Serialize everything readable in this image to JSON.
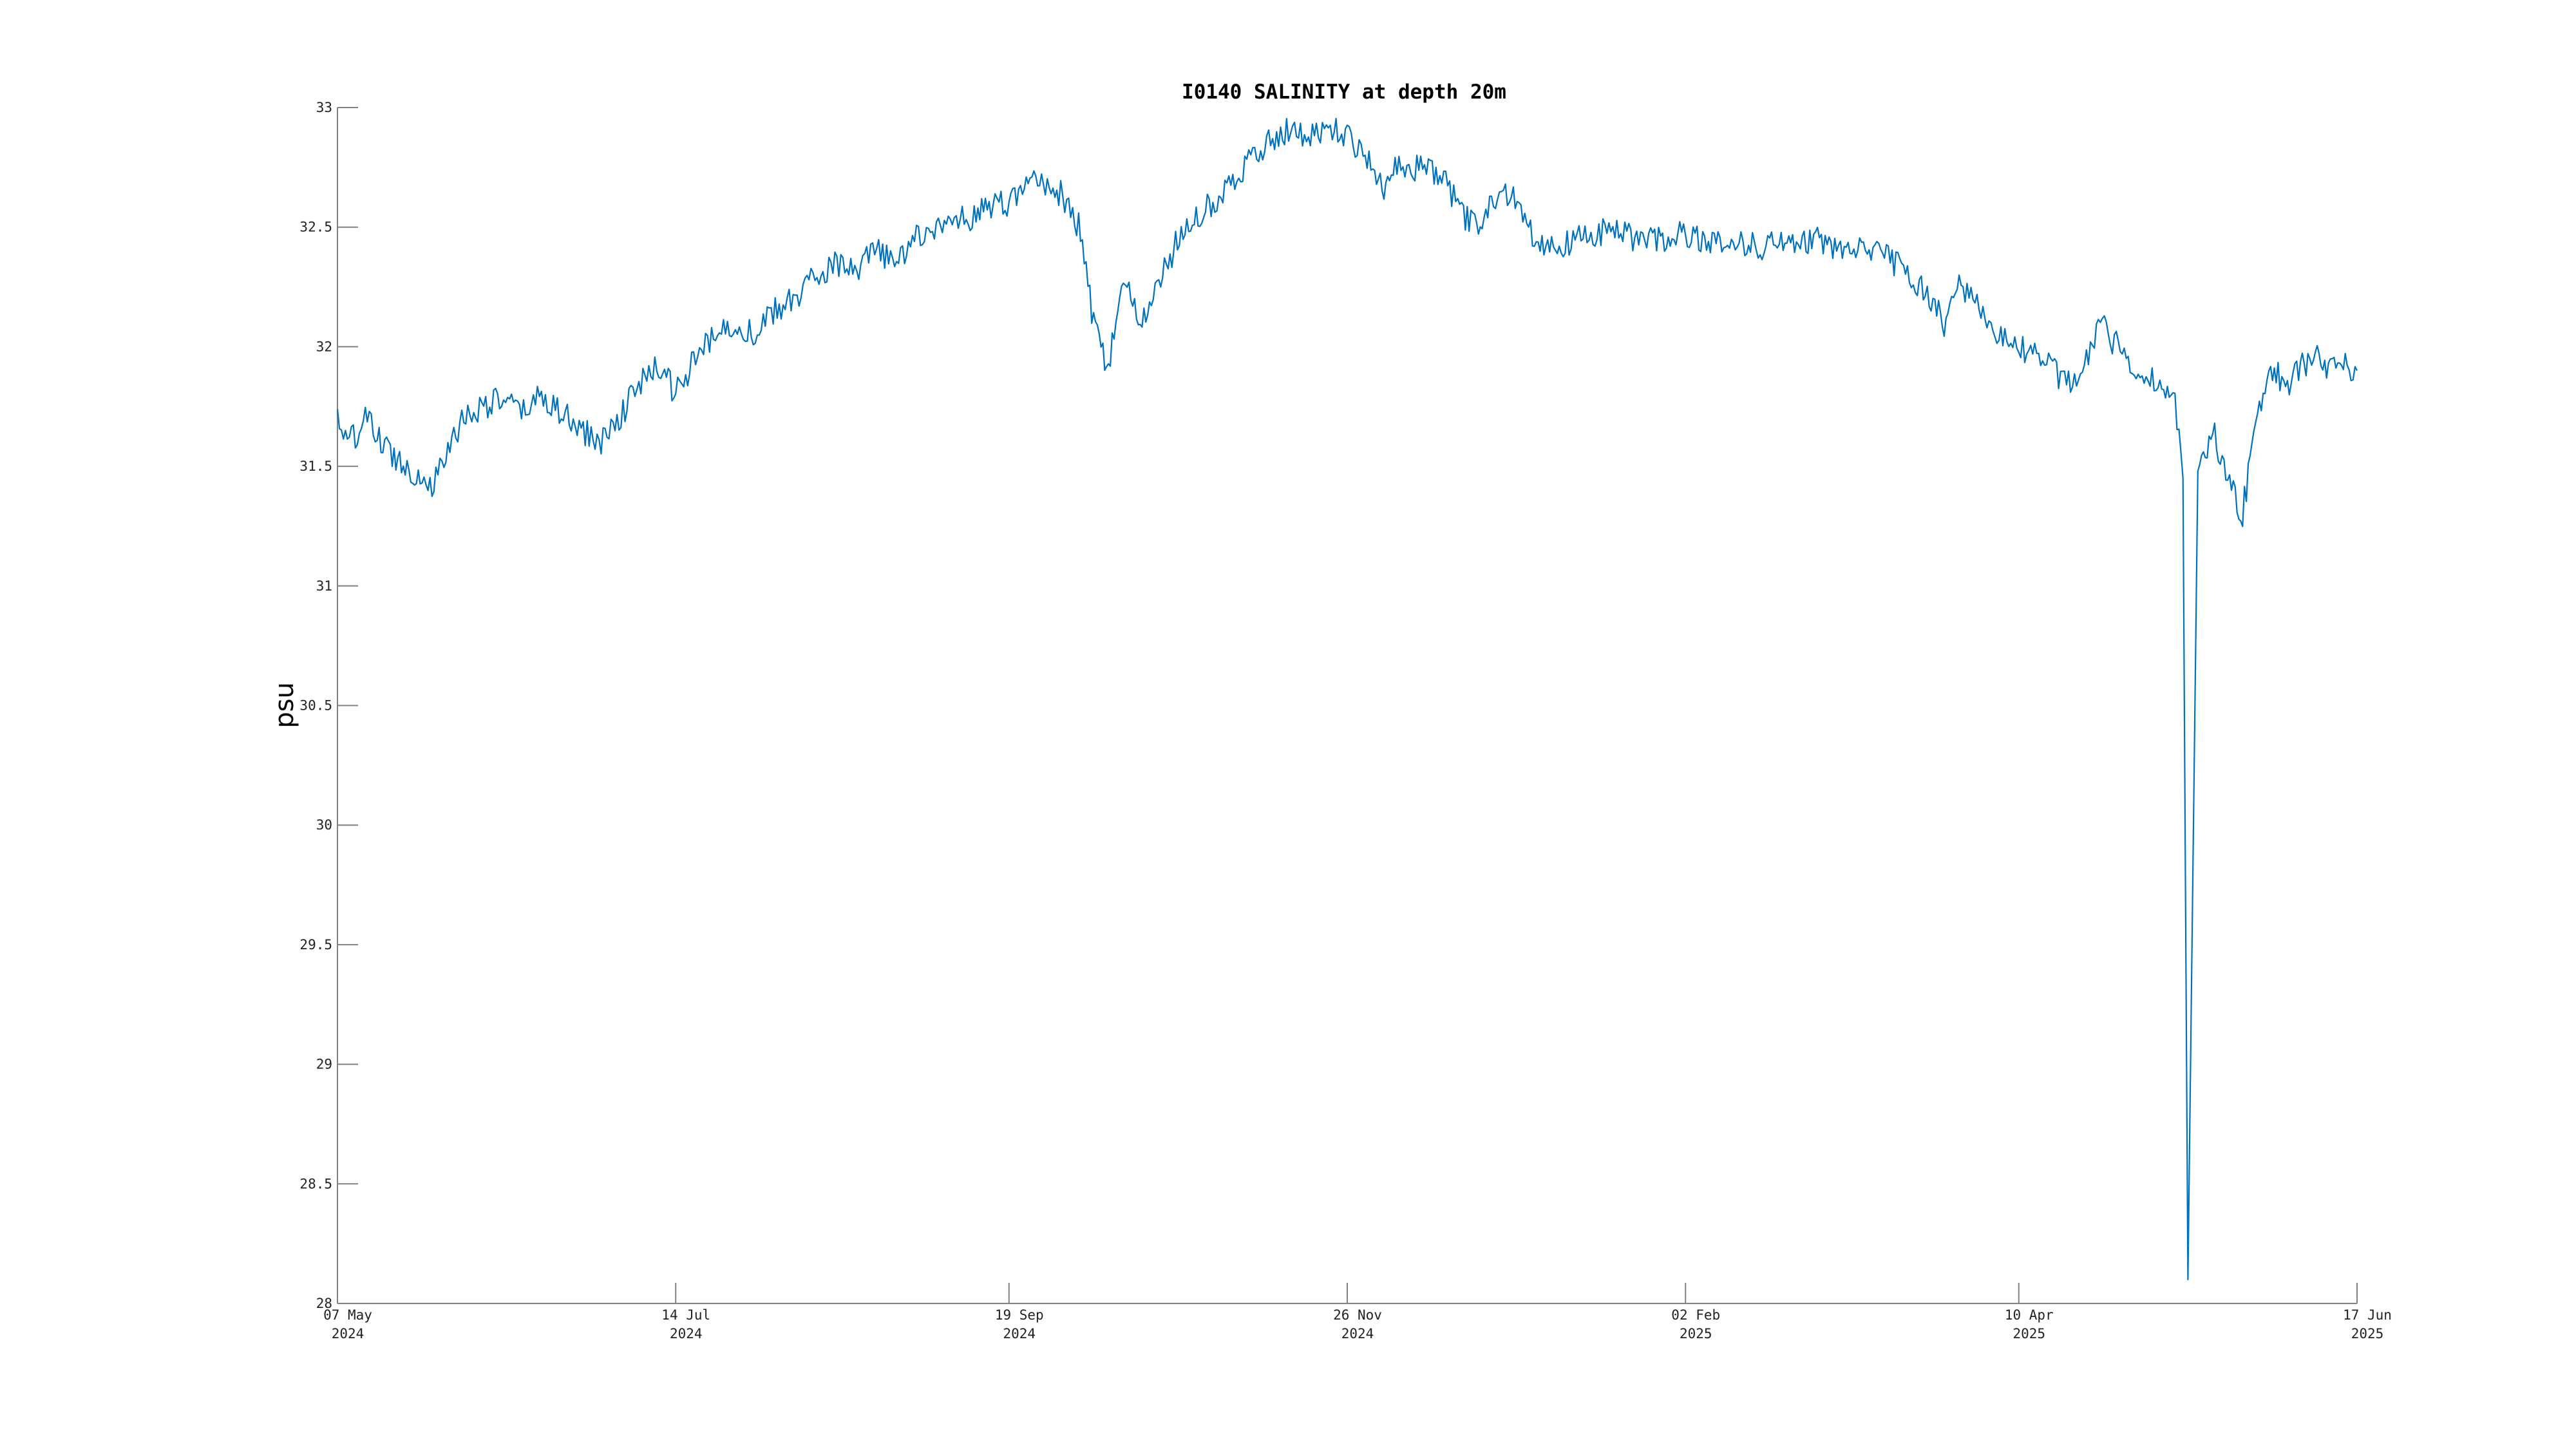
{
  "chart_data": {
    "type": "line",
    "title": "I0140 SALINITY at depth 20m",
    "xlabel": "",
    "ylabel": "psu",
    "xlim": [
      "2024-05-07",
      "2025-06-17"
    ],
    "ylim": [
      28,
      33
    ],
    "grid": false,
    "legend": "none",
    "y_ticks": [
      28,
      28.5,
      29,
      29.5,
      30,
      30.5,
      31,
      31.5,
      32,
      32.5,
      33
    ],
    "y_tick_labels": [
      "28",
      "28.5",
      "29",
      "29.5",
      "30",
      "30.5",
      "31",
      "31.5",
      "32",
      "32.5",
      "33"
    ],
    "x_ticks": [
      {
        "date": "2024-05-07",
        "line1": "07 May",
        "line2": "2024"
      },
      {
        "date": "2024-07-14",
        "line1": "14 Jul",
        "line2": "2024"
      },
      {
        "date": "2024-09-19",
        "line1": "19 Sep",
        "line2": "2024"
      },
      {
        "date": "2024-11-26",
        "line1": "26 Nov",
        "line2": "2024"
      },
      {
        "date": "2025-02-02",
        "line1": "02 Feb",
        "line2": "2025"
      },
      {
        "date": "2025-04-10",
        "line1": "10 Apr",
        "line2": "2025"
      },
      {
        "date": "2025-06-17",
        "line1": "17 Jun",
        "line2": "2025"
      }
    ],
    "series": [
      {
        "color": "#0072BD",
        "x": [
          "2024-05-07",
          "2024-05-09",
          "2024-05-11",
          "2024-05-13",
          "2024-05-15",
          "2024-05-18",
          "2024-05-21",
          "2024-05-24",
          "2024-05-26",
          "2024-05-28",
          "2024-06-01",
          "2024-06-05",
          "2024-06-09",
          "2024-06-13",
          "2024-06-17",
          "2024-06-21",
          "2024-06-25",
          "2024-06-29",
          "2024-07-03",
          "2024-07-07",
          "2024-07-11",
          "2024-07-14",
          "2024-07-18",
          "2024-07-22",
          "2024-07-26",
          "2024-07-30",
          "2024-08-03",
          "2024-08-07",
          "2024-08-11",
          "2024-08-15",
          "2024-08-19",
          "2024-08-23",
          "2024-08-27",
          "2024-08-31",
          "2024-09-04",
          "2024-09-08",
          "2024-09-12",
          "2024-09-15",
          "2024-09-19",
          "2024-09-24",
          "2024-09-29",
          "2024-10-03",
          "2024-10-06",
          "2024-10-09",
          "2024-10-12",
          "2024-10-15",
          "2024-10-18",
          "2024-10-21",
          "2024-10-24",
          "2024-10-27",
          "2024-10-30",
          "2024-11-03",
          "2024-11-07",
          "2024-11-11",
          "2024-11-15",
          "2024-11-19",
          "2024-11-23",
          "2024-11-26",
          "2024-11-30",
          "2024-12-03",
          "2024-12-06",
          "2024-12-10",
          "2024-12-15",
          "2024-12-19",
          "2024-12-22",
          "2024-12-25",
          "2024-12-29",
          "2025-01-03",
          "2025-01-08",
          "2025-01-12",
          "2025-01-16",
          "2025-01-20",
          "2025-01-24",
          "2025-01-28",
          "2025-02-02",
          "2025-02-07",
          "2025-02-12",
          "2025-02-17",
          "2025-02-22",
          "2025-02-27",
          "2025-03-04",
          "2025-03-09",
          "2025-03-14",
          "2025-03-19",
          "2025-03-23",
          "2025-03-26",
          "2025-03-29",
          "2025-04-02",
          "2025-04-06",
          "2025-04-10",
          "2025-04-14",
          "2025-04-18",
          "2025-04-22",
          "2025-04-26",
          "2025-04-30",
          "2025-05-04",
          "2025-05-08",
          "2025-05-11",
          "2025-05-13",
          "2025-05-14",
          "2025-05-16",
          "2025-05-19",
          "2025-05-22",
          "2025-05-25",
          "2025-05-28",
          "2025-05-31",
          "2025-06-03",
          "2025-06-06",
          "2025-06-09",
          "2025-06-12",
          "2025-06-15",
          "2025-06-17"
        ],
        "y": [
          31.72,
          31.58,
          31.65,
          31.7,
          31.62,
          31.55,
          31.5,
          31.45,
          31.42,
          31.5,
          31.7,
          31.75,
          31.78,
          31.72,
          31.8,
          31.72,
          31.65,
          31.6,
          31.72,
          31.85,
          31.92,
          31.8,
          31.95,
          32.05,
          32.1,
          32.05,
          32.15,
          32.2,
          32.3,
          32.35,
          32.3,
          32.4,
          32.35,
          32.45,
          32.5,
          32.52,
          32.55,
          32.58,
          32.6,
          32.7,
          32.65,
          32.5,
          32.1,
          31.9,
          32.3,
          32.1,
          32.2,
          32.35,
          32.5,
          32.55,
          32.6,
          32.7,
          32.8,
          32.88,
          32.9,
          32.88,
          32.92,
          32.88,
          32.8,
          32.65,
          32.78,
          32.75,
          32.72,
          32.55,
          32.5,
          32.6,
          32.65,
          32.45,
          32.42,
          32.45,
          32.48,
          32.47,
          32.44,
          32.45,
          32.47,
          32.45,
          32.43,
          32.42,
          32.44,
          32.45,
          32.42,
          32.4,
          32.38,
          32.3,
          32.2,
          32.1,
          32.25,
          32.15,
          32.05,
          32.0,
          31.95,
          31.88,
          31.82,
          32.1,
          32.0,
          31.88,
          31.85,
          31.82,
          31.45,
          28.1,
          31.5,
          31.65,
          31.45,
          31.3,
          31.75,
          31.9,
          31.85,
          31.92,
          31.95,
          31.9,
          31.92,
          31.9
        ]
      }
    ]
  }
}
